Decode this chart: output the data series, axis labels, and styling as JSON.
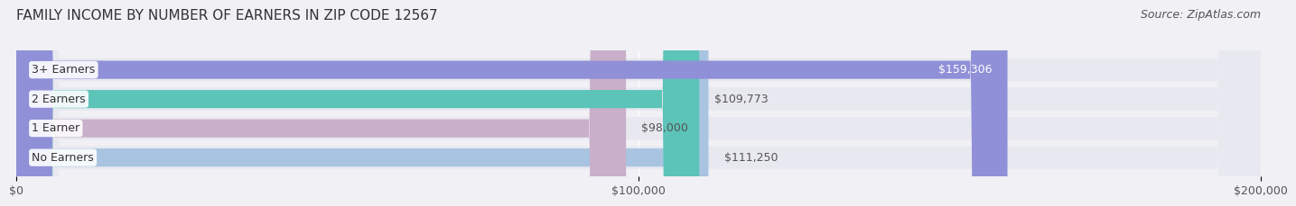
{
  "title": "FAMILY INCOME BY NUMBER OF EARNERS IN ZIP CODE 12567",
  "source": "Source: ZipAtlas.com",
  "categories": [
    "No Earners",
    "1 Earner",
    "2 Earners",
    "3+ Earners"
  ],
  "values": [
    111250,
    98000,
    109773,
    159306
  ],
  "bar_colors": [
    "#a8c4e0",
    "#c9afc9",
    "#5cc4b8",
    "#9090d8"
  ],
  "label_colors": [
    "#555555",
    "#555555",
    "#555555",
    "#ffffff"
  ],
  "value_labels": [
    "$111,250",
    "$98,000",
    "$109,773",
    "$159,306"
  ],
  "xlim": [
    0,
    200000
  ],
  "xticks": [
    0,
    100000,
    200000
  ],
  "xtick_labels": [
    "$0",
    "$100,000",
    "$200,000"
  ],
  "background_color": "#f0f0f5",
  "bar_bg_color": "#e8e8f0",
  "title_fontsize": 11,
  "source_fontsize": 9,
  "label_fontsize": 9,
  "value_fontsize": 9,
  "tick_fontsize": 9
}
